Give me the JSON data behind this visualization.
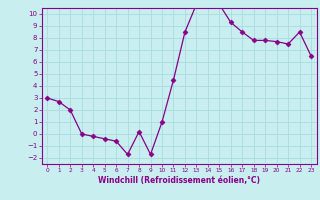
{
  "x": [
    0,
    1,
    2,
    3,
    4,
    5,
    6,
    7,
    8,
    9,
    10,
    11,
    12,
    13,
    14,
    15,
    16,
    17,
    18,
    19,
    20,
    21,
    22,
    23
  ],
  "y": [
    3.0,
    2.7,
    2.0,
    0.0,
    -0.2,
    -0.4,
    -0.6,
    -1.7,
    0.2,
    -1.7,
    1.0,
    4.5,
    8.5,
    10.8,
    11.0,
    10.8,
    9.3,
    8.5,
    7.8,
    7.8,
    7.7,
    7.5,
    8.5,
    6.5
  ],
  "line_color": "#880088",
  "marker": "D",
  "marker_size": 2.5,
  "background_color": "#c8eef0",
  "grid_color": "#aadddd",
  "xlabel": "Windchill (Refroidissement éolien,°C)",
  "xlim": [
    -0.5,
    23.5
  ],
  "ylim": [
    -2.5,
    10.5
  ],
  "yticks": [
    -2,
    -1,
    0,
    1,
    2,
    3,
    4,
    5,
    6,
    7,
    8,
    9,
    10
  ],
  "xticks": [
    0,
    1,
    2,
    3,
    4,
    5,
    6,
    7,
    8,
    9,
    10,
    11,
    12,
    13,
    14,
    15,
    16,
    17,
    18,
    19,
    20,
    21,
    22,
    23
  ],
  "tick_color": "#880088",
  "label_color": "#880088",
  "spine_color": "#880088"
}
